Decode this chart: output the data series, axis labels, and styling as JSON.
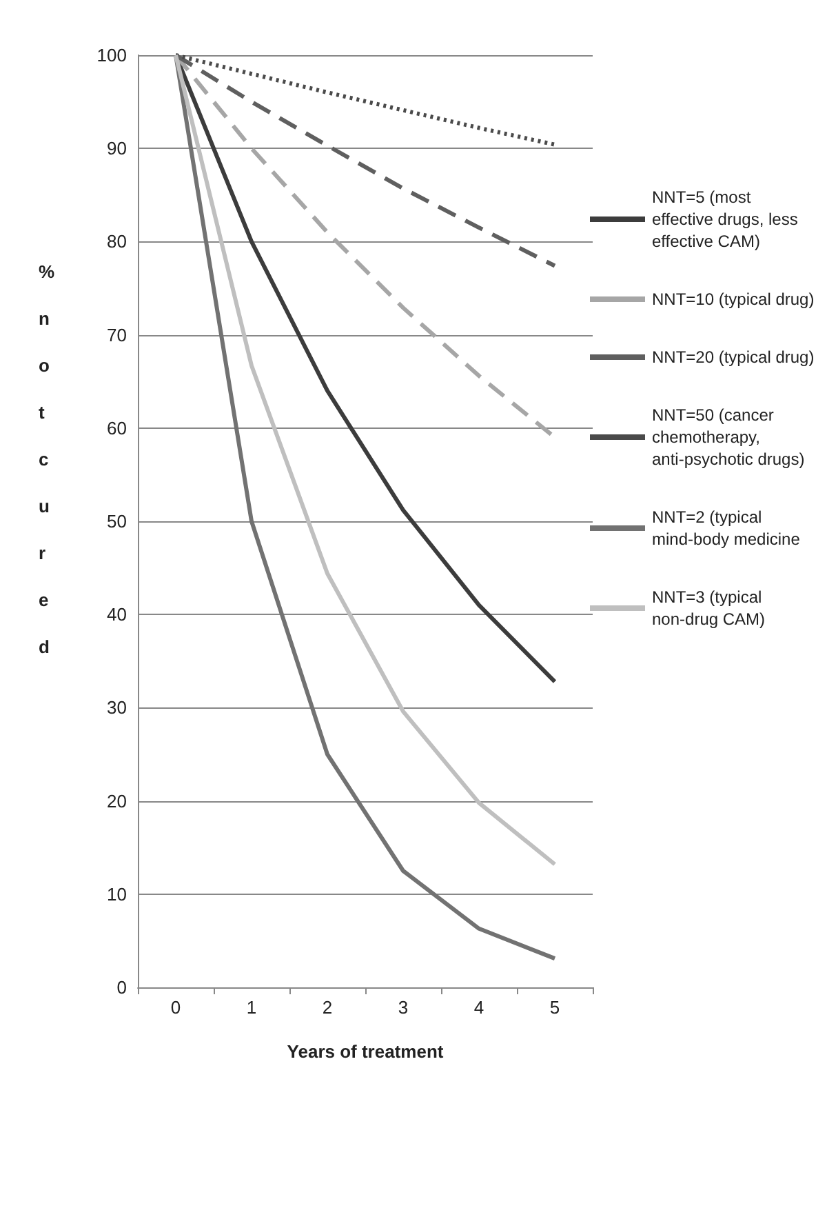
{
  "chart_data": {
    "type": "line",
    "xlabel": "Years of treatment",
    "ylabel": "% not cured",
    "categories": [
      "0",
      "1",
      "2",
      "3",
      "4",
      "5"
    ],
    "ylim": [
      0,
      100
    ],
    "yticks": [
      0,
      10,
      20,
      30,
      40,
      50,
      60,
      70,
      80,
      90,
      100
    ],
    "grid": "y",
    "legend": "right",
    "marker": "none",
    "series": [
      {
        "name": "NNT=5 (most effective drugs, less effective CAM)",
        "color": "#3c3c3c",
        "line_style": "solid",
        "values": [
          100,
          80,
          64,
          51.2,
          41,
          32.8
        ]
      },
      {
        "name": "NNT=10 (typical drug)",
        "color": "#a6a6a6",
        "line_style": "dashed",
        "values": [
          100,
          90,
          81,
          72.9,
          65.6,
          59
        ]
      },
      {
        "name": "NNT=20 (typical drug)",
        "color": "#5f5f5f",
        "line_style": "dashed",
        "values": [
          100,
          95,
          90.3,
          85.7,
          81.5,
          77.4
        ]
      },
      {
        "name": "NNT=50 (cancer chemotherapy, anti-psychotic drugs)",
        "color": "#4a4a4a",
        "line_style": "dotted",
        "values": [
          100,
          98,
          96,
          94.1,
          92.2,
          90.4
        ]
      },
      {
        "name": "NNT=2 (typical mind-body medicine",
        "color": "#727272",
        "line_style": "solid",
        "values": [
          100,
          50,
          25,
          12.5,
          6.3,
          3.1
        ]
      },
      {
        "name": "NNT=3 (typical non-drug CAM)",
        "color": "#bfbfbf",
        "line_style": "solid",
        "values": [
          100,
          66.7,
          44.4,
          29.6,
          19.8,
          13.2
        ]
      }
    ]
  }
}
